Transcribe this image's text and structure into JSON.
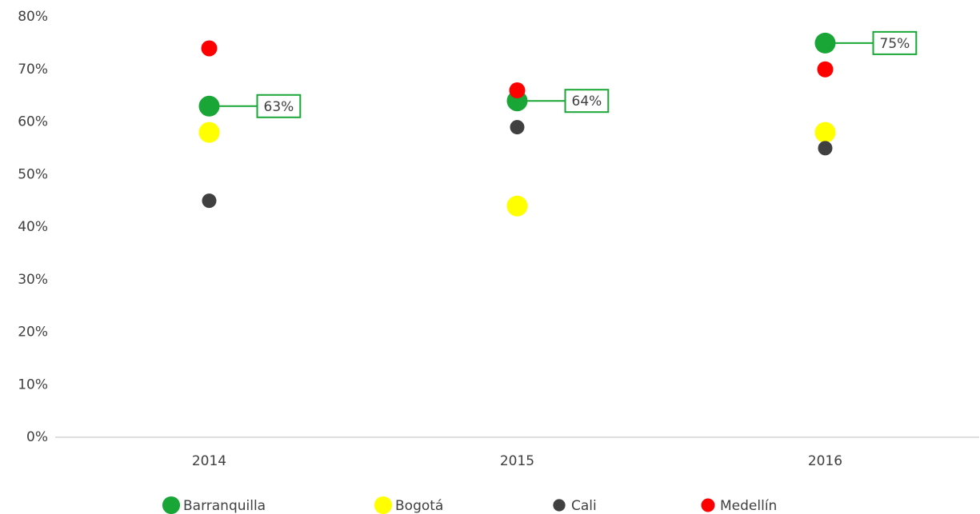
{
  "chart_data": {
    "type": "dot",
    "categories": [
      "2014",
      "2015",
      "2016"
    ],
    "series": [
      {
        "name": "Barranquilla",
        "color": "#1aa637",
        "values": [
          63,
          64,
          75
        ],
        "value_labels": [
          "63%",
          "64%",
          "75%"
        ]
      },
      {
        "name": "Bogotá",
        "color": "#ffff00",
        "values": [
          58,
          44,
          58
        ]
      },
      {
        "name": "Cali",
        "color": "#404040",
        "values": [
          45,
          59,
          55
        ]
      },
      {
        "name": "Medellín",
        "color": "#ff0000",
        "values": [
          74,
          66,
          70
        ]
      }
    ],
    "ylim": [
      0,
      80
    ],
    "yticks": [
      {
        "value": 0,
        "label": "0%"
      },
      {
        "value": 10,
        "label": "10%"
      },
      {
        "value": 20,
        "label": "20%"
      },
      {
        "value": 30,
        "label": "30%"
      },
      {
        "value": 40,
        "label": "40%"
      },
      {
        "value": 50,
        "label": "50%"
      },
      {
        "value": 60,
        "label": "60%"
      },
      {
        "value": 70,
        "label": "70%"
      },
      {
        "value": 80,
        "label": "80%"
      }
    ],
    "grid": false,
    "legend": "bottom"
  }
}
